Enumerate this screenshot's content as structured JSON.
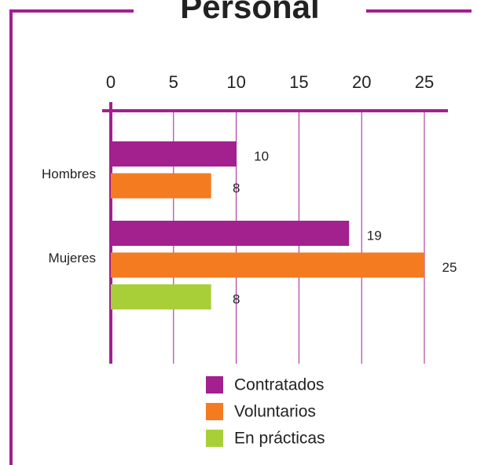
{
  "chart_data": {
    "type": "bar",
    "orientation": "horizontal",
    "title": "Personal",
    "categories": [
      "Hombres",
      "Mujeres"
    ],
    "series": [
      {
        "name": "Contratados",
        "color": "#a3208f",
        "values": [
          10,
          19
        ]
      },
      {
        "name": "Voluntarios",
        "color": "#f47b20",
        "values": [
          8,
          25
        ]
      },
      {
        "name": "En prácticas",
        "color": "#a8cf38",
        "values": [
          null,
          8
        ]
      }
    ],
    "xlim": [
      0,
      25
    ],
    "xticks": [
      0,
      5,
      10,
      15,
      20,
      25
    ],
    "grid": true,
    "grid_color": "#a3208f"
  }
}
